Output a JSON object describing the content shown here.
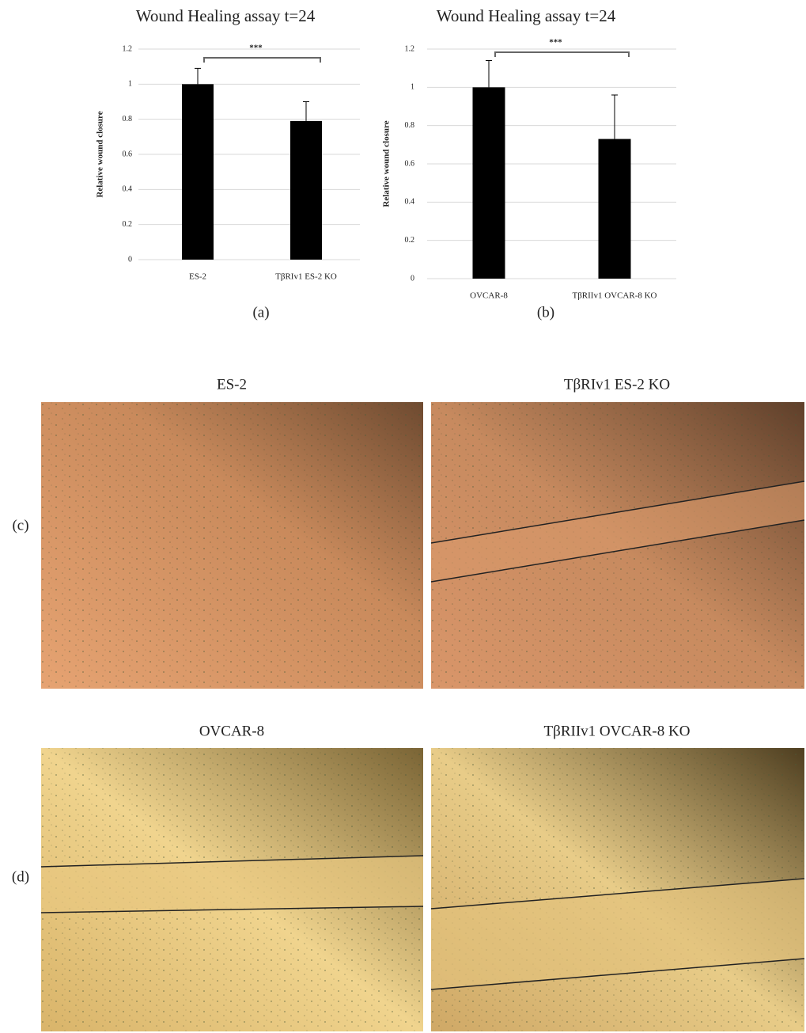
{
  "chart_data": [
    {
      "type": "bar",
      "title": "Wound Healing assay t=24",
      "y_label": "Relative wound closure",
      "categories": [
        "ES-2",
        "TβRIv1 ES-2 KO"
      ],
      "values": [
        1.0,
        0.79
      ],
      "errors": [
        0.09,
        0.11
      ],
      "color": "#000000",
      "ylim": [
        0,
        1.2
      ],
      "yticks": [
        0,
        0.2,
        0.4,
        0.6,
        0.8,
        1,
        1.2
      ],
      "grid": true,
      "annotation": "***",
      "panel_label": "(a)"
    },
    {
      "type": "bar",
      "title": "Wound Healing assay t=24",
      "y_label": "Relative wound closure",
      "categories": [
        "OVCAR-8",
        "TβRIIv1 OVCAR-8 KO"
      ],
      "values": [
        1.0,
        0.73
      ],
      "errors": [
        0.14,
        0.23
      ],
      "color": "#000000",
      "ylim": [
        0,
        1.2
      ],
      "yticks": [
        0,
        0.2,
        0.4,
        0.6,
        0.8,
        1,
        1.2
      ],
      "grid": true,
      "annotation": "***",
      "panel_label": "(b)"
    }
  ],
  "image_panels": [
    {
      "label": "(c)",
      "images": [
        {
          "title": "ES-2"
        },
        {
          "title": "TβRIv1 ES-2 KO"
        }
      ]
    },
    {
      "label": "(d)",
      "images": [
        {
          "title": "OVCAR-8"
        },
        {
          "title": "TβRIIv1 OVCAR-8 KO"
        }
      ]
    }
  ]
}
